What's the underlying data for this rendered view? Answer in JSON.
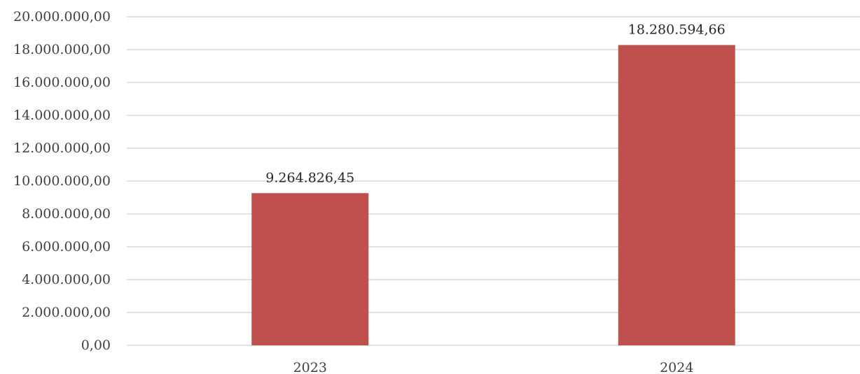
{
  "chart_data": {
    "type": "bar",
    "categories": [
      "2023",
      "2024"
    ],
    "values": [
      9264826.45,
      18280594.66
    ],
    "value_labels": [
      "9.264.826,45",
      "18.280.594,66"
    ],
    "ylim": [
      0,
      20000000
    ],
    "yticks": [
      0,
      2000000,
      4000000,
      6000000,
      8000000,
      10000000,
      12000000,
      14000000,
      16000000,
      18000000,
      20000000
    ],
    "ytick_labels": [
      "0,00",
      "2.000.000,00",
      "4.000.000,00",
      "6.000.000,00",
      "8.000.000,00",
      "10.000.000,00",
      "12.000.000,00",
      "14.000.000,00",
      "16.000.000,00",
      "18.000.000,00",
      "20.000.000,00"
    ],
    "grid": true,
    "legend": "none",
    "colors": {
      "bar": "#C0504D",
      "grid": "#D9D9D9",
      "text": "#404040"
    }
  }
}
